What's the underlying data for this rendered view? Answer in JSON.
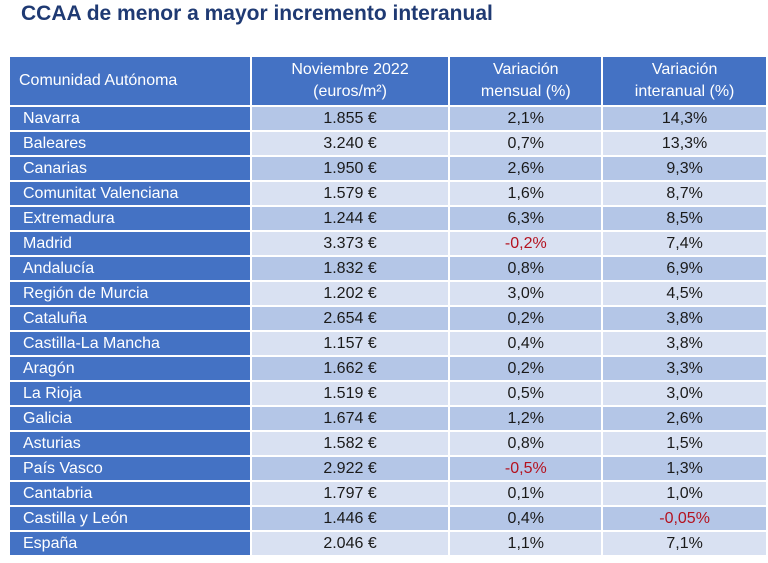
{
  "title": "CCAA de menor a mayor incremento interanual",
  "table": {
    "headers": [
      [
        "Comunidad Autónoma"
      ],
      [
        "Noviembre 2022",
        "(euros/m²)"
      ],
      [
        "Variación",
        "mensual (%)"
      ],
      [
        "Variación",
        "interanual (%)"
      ]
    ],
    "rows": [
      {
        "region": "Navarra",
        "price": "1.855 €",
        "monthly": "2,1%",
        "yearly": "14,3%"
      },
      {
        "region": "Baleares",
        "price": "3.240 €",
        "monthly": "0,7%",
        "yearly": "13,3%"
      },
      {
        "region": "Canarias",
        "price": "1.950 €",
        "monthly": "2,6%",
        "yearly": "9,3%"
      },
      {
        "region": "Comunitat Valenciana",
        "price": "1.579 €",
        "monthly": "1,6%",
        "yearly": "8,7%"
      },
      {
        "region": "Extremadura",
        "price": "1.244 €",
        "monthly": "6,3%",
        "yearly": "8,5%"
      },
      {
        "region": "Madrid",
        "price": "3.373 €",
        "monthly": "-0,2%",
        "yearly": "7,4%"
      },
      {
        "region": "Andalucía",
        "price": "1.832 €",
        "monthly": "0,8%",
        "yearly": "6,9%"
      },
      {
        "region": "Región de Murcia",
        "price": "1.202 €",
        "monthly": "3,0%",
        "yearly": "4,5%"
      },
      {
        "region": "Cataluña",
        "price": "2.654 €",
        "monthly": "0,2%",
        "yearly": "3,8%"
      },
      {
        "region": "Castilla-La Mancha",
        "price": "1.157 €",
        "monthly": "0,4%",
        "yearly": "3,8%"
      },
      {
        "region": "Aragón",
        "price": "1.662 €",
        "monthly": "0,2%",
        "yearly": "3,3%"
      },
      {
        "region": "La Rioja",
        "price": "1.519 €",
        "monthly": "0,5%",
        "yearly": "3,0%"
      },
      {
        "region": "Galicia",
        "price": "1.674 €",
        "monthly": "1,2%",
        "yearly": "2,6%"
      },
      {
        "region": "Asturias",
        "price": "1.582 €",
        "monthly": "0,8%",
        "yearly": "1,5%"
      },
      {
        "region": "País Vasco",
        "price": "2.922 €",
        "monthly": "-0,5%",
        "yearly": "1,3%"
      },
      {
        "region": "Cantabria",
        "price": "1.797 €",
        "monthly": "0,1%",
        "yearly": "1,0%"
      },
      {
        "region": "Castilla y León",
        "price": "1.446 €",
        "monthly": "0,4%",
        "yearly": "-0,05%"
      },
      {
        "region": "España",
        "price": "2.046 €",
        "monthly": "1,1%",
        "yearly": "7,1%"
      }
    ]
  },
  "colors": {
    "title": "#1f3a73",
    "header_bg": "#4472c4",
    "row_dark": "#b4c6e7",
    "row_light": "#d9e1f2",
    "negative": "#b4121f"
  }
}
